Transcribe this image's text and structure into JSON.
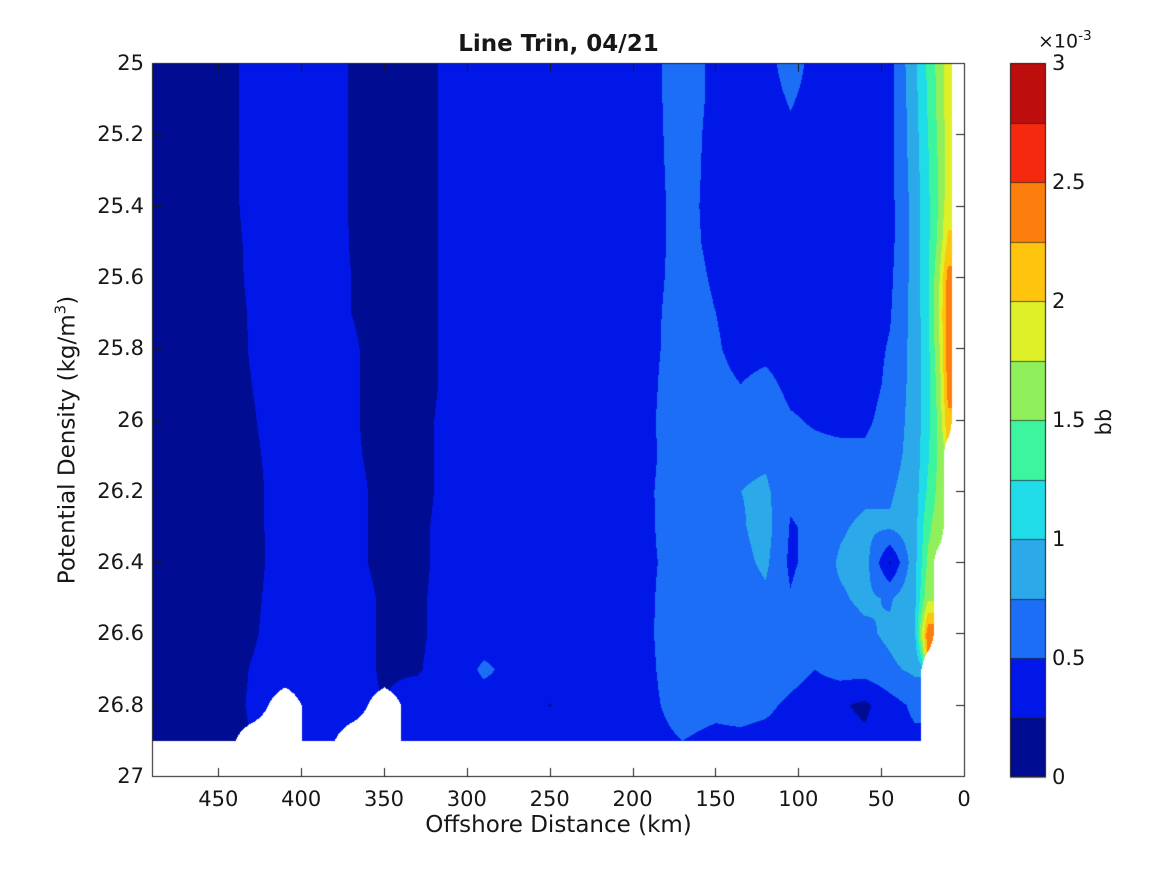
{
  "figure": {
    "background_color": "#ffffff",
    "no_data_color": "#ffffff",
    "axis_color": "#1a1a1a"
  },
  "chart_data": {
    "type": "filled_contour",
    "title": "Line Trin, 04/21",
    "xlabel": "Offshore Distance (km)",
    "ylabel": {
      "base": "Potential Density (kg/m",
      "sup": "3",
      "close": ")"
    },
    "xlim": [
      490,
      0
    ],
    "ylim": [
      25,
      27
    ],
    "x_axis_reversed": true,
    "y_axis_reversed": true,
    "grid_lines": false,
    "x_ticks": [
      450,
      400,
      350,
      300,
      250,
      200,
      150,
      100,
      50,
      0
    ],
    "x_tick_labels": [
      "450",
      "400",
      "350",
      "300",
      "250",
      "200",
      "150",
      "100",
      "50",
      "0"
    ],
    "y_ticks": [
      25,
      25.2,
      25.4,
      25.6,
      25.8,
      26,
      26.2,
      26.4,
      26.6,
      26.8,
      27
    ],
    "y_tick_labels": [
      "25",
      "25.2",
      "25.4",
      "25.6",
      "25.8",
      "26",
      "26.2",
      "26.4",
      "26.6",
      "26.8",
      "27"
    ],
    "colorbar": {
      "label": "bb",
      "exponent_base": "×10",
      "exponent_sup": "-3",
      "tick_values": [
        0,
        0.5,
        1,
        1.5,
        2,
        2.5,
        3
      ],
      "tick_labels": [
        "0",
        "0.5",
        "1",
        "1.5",
        "2",
        "2.5",
        "3"
      ],
      "value_range_e3": [
        0,
        3
      ],
      "n_bands": 12,
      "band_step_e3": 0.25,
      "band_colors": [
        "#000c92",
        "#0017e8",
        "#1b6ef5",
        "#2ba9e8",
        "#1fdce8",
        "#3df59e",
        "#90f05c",
        "#ddf028",
        "#fec40e",
        "#fc7e0d",
        "#f5290d",
        "#bd0d0d"
      ]
    },
    "grid": {
      "x_km": [
        490,
        470,
        450,
        430,
        410,
        390,
        370,
        350,
        330,
        310,
        290,
        270,
        250,
        230,
        210,
        190,
        170,
        150,
        135,
        120,
        105,
        90,
        75,
        60,
        45,
        30,
        22,
        15,
        10,
        5
      ],
      "density": [
        25.0,
        25.1,
        25.2,
        25.3,
        25.4,
        25.5,
        25.6,
        25.7,
        25.8,
        25.9,
        26.0,
        26.1,
        26.2,
        26.3,
        26.4,
        26.5,
        26.6,
        26.7,
        26.8,
        26.9
      ],
      "bb_e3": [
        [
          0.12,
          0.12,
          0.12,
          0.12,
          0.12,
          0.12,
          0.12,
          0.12,
          0.12,
          0.12,
          0.12,
          0.12,
          0.12,
          0.12,
          0.12,
          0.12,
          0.12,
          0.12,
          0.12,
          0.12
        ],
        [
          0.15,
          0.15,
          0.15,
          0.15,
          0.15,
          0.15,
          0.15,
          0.15,
          0.15,
          0.15,
          0.15,
          0.15,
          0.15,
          0.15,
          0.15,
          0.15,
          0.15,
          0.15,
          0.15,
          0.15
        ],
        [
          0.2,
          0.2,
          0.2,
          0.2,
          0.2,
          0.2,
          0.19,
          0.19,
          0.18,
          0.18,
          0.17,
          0.17,
          0.16,
          0.16,
          0.16,
          0.16,
          0.16,
          0.16,
          0.17,
          0.17
        ],
        [
          0.28,
          0.28,
          0.28,
          0.28,
          0.28,
          0.27,
          0.27,
          0.26,
          0.26,
          0.25,
          0.24,
          0.23,
          0.22,
          0.22,
          0.21,
          0.22,
          0.23,
          0.26,
          0.27,
          null
        ],
        [
          0.33,
          0.33,
          0.33,
          0.33,
          0.33,
          0.33,
          0.33,
          0.33,
          0.32,
          0.32,
          0.31,
          0.3,
          0.3,
          0.3,
          0.31,
          0.32,
          0.33,
          0.34,
          null,
          null
        ],
        [
          0.35,
          0.35,
          0.35,
          0.35,
          0.35,
          0.36,
          0.36,
          0.36,
          0.36,
          0.36,
          0.36,
          0.36,
          0.36,
          0.36,
          0.36,
          0.36,
          0.35,
          0.33,
          0.3,
          0.3
        ],
        [
          0.24,
          0.24,
          0.24,
          0.24,
          0.24,
          0.24,
          0.25,
          0.25,
          0.26,
          0.26,
          0.26,
          0.26,
          0.27,
          0.27,
          0.27,
          0.28,
          0.28,
          0.28,
          0.27,
          null
        ],
        [
          0.22,
          0.22,
          0.22,
          0.22,
          0.22,
          0.22,
          0.22,
          0.22,
          0.22,
          0.22,
          0.22,
          0.23,
          0.23,
          0.23,
          0.23,
          0.24,
          0.24,
          0.24,
          null,
          null
        ],
        [
          0.2,
          0.2,
          0.2,
          0.2,
          0.2,
          0.2,
          0.2,
          0.2,
          0.2,
          0.2,
          0.21,
          0.21,
          0.21,
          0.22,
          0.22,
          0.23,
          0.23,
          0.24,
          0.3,
          0.32
        ],
        [
          0.28,
          0.28,
          0.28,
          0.28,
          0.28,
          0.28,
          0.28,
          0.28,
          0.28,
          0.28,
          0.29,
          0.29,
          0.29,
          0.3,
          0.3,
          0.3,
          0.3,
          0.31,
          0.33,
          0.34
        ],
        [
          0.33,
          0.34,
          0.34,
          0.34,
          0.35,
          0.35,
          0.35,
          0.35,
          0.35,
          0.35,
          0.36,
          0.36,
          0.36,
          0.36,
          0.36,
          0.36,
          0.36,
          0.55,
          0.37,
          0.36
        ],
        [
          0.38,
          0.38,
          0.38,
          0.39,
          0.39,
          0.4,
          0.4,
          0.4,
          0.4,
          0.4,
          0.4,
          0.4,
          0.4,
          0.4,
          0.4,
          0.4,
          0.4,
          0.4,
          0.4,
          0.38
        ],
        [
          0.4,
          0.41,
          0.41,
          0.42,
          0.42,
          0.42,
          0.42,
          0.42,
          0.42,
          0.42,
          0.42,
          0.42,
          0.42,
          0.42,
          0.42,
          0.42,
          0.42,
          0.42,
          0.24,
          0.4
        ],
        [
          0.42,
          0.42,
          0.42,
          0.43,
          0.43,
          0.43,
          0.43,
          0.43,
          0.43,
          0.43,
          0.43,
          0.43,
          0.43,
          0.43,
          0.43,
          0.43,
          0.43,
          0.43,
          0.43,
          0.42
        ],
        [
          0.43,
          0.43,
          0.43,
          0.43,
          0.43,
          0.43,
          0.43,
          0.43,
          0.43,
          0.44,
          0.44,
          0.44,
          0.45,
          0.45,
          0.46,
          0.46,
          0.46,
          0.46,
          0.45,
          0.44
        ],
        [
          0.45,
          0.45,
          0.45,
          0.45,
          0.45,
          0.45,
          0.45,
          0.46,
          0.46,
          0.46,
          0.47,
          0.47,
          0.48,
          0.48,
          0.48,
          0.48,
          0.48,
          0.47,
          0.46,
          0.44
        ],
        [
          0.58,
          0.58,
          0.57,
          0.56,
          0.55,
          0.55,
          0.56,
          0.57,
          0.58,
          0.62,
          0.63,
          0.6,
          0.62,
          0.6,
          0.56,
          0.6,
          0.63,
          0.62,
          0.58,
          0.5
        ],
        [
          0.46,
          0.46,
          0.45,
          0.45,
          0.45,
          0.46,
          0.48,
          0.5,
          0.52,
          0.55,
          0.6,
          0.65,
          0.72,
          0.7,
          0.65,
          0.58,
          0.56,
          0.62,
          0.55,
          0.45
        ],
        [
          0.42,
          0.42,
          0.42,
          0.42,
          0.42,
          0.42,
          0.42,
          0.43,
          0.44,
          0.5,
          0.58,
          0.68,
          0.75,
          0.72,
          0.68,
          0.62,
          0.7,
          0.66,
          0.58,
          0.45
        ],
        [
          0.42,
          0.41,
          0.4,
          0.4,
          0.4,
          0.4,
          0.4,
          0.42,
          0.45,
          0.55,
          0.62,
          0.7,
          0.8,
          0.85,
          0.8,
          0.7,
          0.75,
          0.7,
          0.55,
          0.42
        ],
        [
          0.6,
          0.52,
          0.46,
          0.42,
          0.4,
          0.4,
          0.4,
          0.4,
          0.42,
          0.45,
          0.52,
          0.55,
          0.55,
          0.48,
          0.45,
          0.52,
          0.6,
          0.6,
          0.45,
          0.4
        ],
        [
          0.42,
          0.42,
          0.42,
          0.4,
          0.4,
          0.4,
          0.4,
          0.4,
          0.4,
          0.42,
          0.48,
          0.55,
          0.6,
          0.55,
          0.62,
          0.7,
          0.62,
          0.5,
          0.35,
          0.4
        ],
        [
          0.48,
          0.45,
          0.42,
          0.4,
          0.4,
          0.4,
          0.4,
          0.4,
          0.4,
          0.42,
          0.45,
          0.55,
          0.65,
          0.72,
          0.78,
          0.72,
          0.65,
          0.6,
          0.28,
          0.35
        ],
        [
          0.42,
          0.42,
          0.4,
          0.4,
          0.4,
          0.4,
          0.4,
          0.4,
          0.4,
          0.4,
          0.45,
          0.55,
          0.7,
          0.8,
          0.85,
          0.8,
          0.7,
          0.6,
          0.2,
          0.3
        ],
        [
          0.42,
          0.42,
          0.42,
          0.42,
          0.42,
          0.42,
          0.45,
          0.48,
          0.52,
          0.55,
          0.6,
          0.65,
          0.72,
          0.78,
          0.22,
          0.72,
          0.8,
          0.7,
          0.4,
          0.4
        ],
        [
          0.95,
          0.92,
          0.9,
          0.88,
          0.85,
          0.85,
          0.85,
          0.85,
          0.85,
          0.85,
          0.85,
          0.85,
          0.88,
          0.9,
          0.92,
          0.95,
          0.95,
          0.8,
          0.55,
          0.45
        ],
        [
          1.3,
          1.28,
          1.25,
          1.22,
          1.2,
          1.2,
          1.2,
          1.2,
          1.18,
          1.18,
          1.18,
          1.22,
          1.3,
          1.45,
          1.55,
          1.7,
          2.45,
          null,
          null,
          null
        ],
        [
          1.62,
          1.6,
          1.58,
          1.55,
          1.55,
          1.6,
          1.75,
          1.8,
          1.75,
          1.65,
          1.6,
          1.58,
          1.6,
          1.65,
          null,
          null,
          null,
          null,
          null,
          null
        ],
        [
          1.9,
          1.88,
          1.85,
          1.85,
          1.9,
          2.05,
          2.35,
          2.4,
          2.4,
          2.35,
          2.2,
          null,
          null,
          null,
          null,
          null,
          null,
          null,
          null,
          null
        ],
        [
          null,
          null,
          null,
          null,
          null,
          null,
          null,
          null,
          null,
          null,
          null,
          null,
          null,
          null,
          null,
          null,
          null,
          null,
          null,
          null
        ]
      ]
    }
  }
}
